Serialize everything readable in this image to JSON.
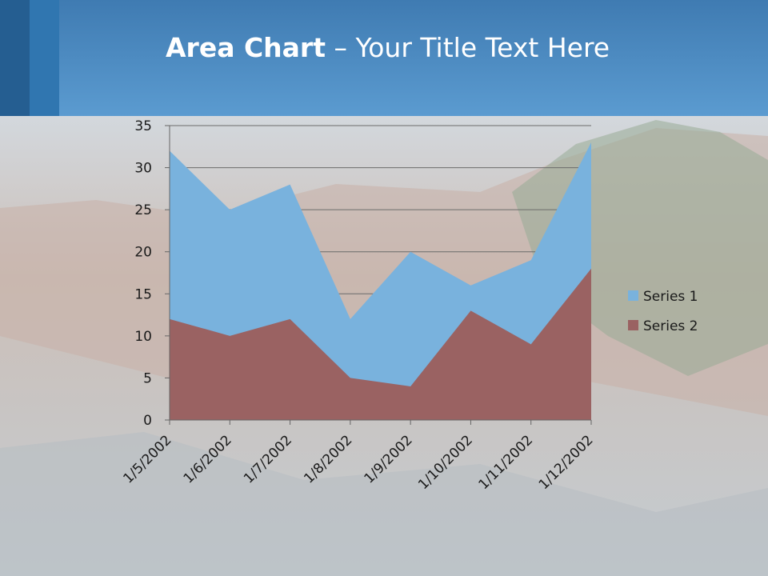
{
  "slide": {
    "title_bold": "Area Chart",
    "title_rest": " – Your Title Text Here"
  },
  "colors": {
    "header": "#4a88bd",
    "header_dark": "#2b6a9f",
    "series1": "#79b2dd",
    "series2": "#9a6262",
    "grid": "#6b6b6b"
  },
  "chart_data": {
    "type": "area",
    "stacked": true,
    "categories": [
      "1/5/2002",
      "1/6/2002",
      "1/7/2002",
      "1/8/2002",
      "1/9/2002",
      "1/10/2002",
      "1/11/2002",
      "1/12/2002"
    ],
    "series": [
      {
        "name": "Series 1",
        "values": [
          20,
          15,
          16,
          7,
          16,
          3,
          10,
          15
        ]
      },
      {
        "name": "Series 2",
        "values": [
          12,
          10,
          12,
          5,
          4,
          13,
          9,
          18
        ]
      }
    ],
    "ylim": [
      0,
      35
    ],
    "yticks": [
      0,
      5,
      10,
      15,
      20,
      25,
      30,
      35
    ],
    "grid": true,
    "legend": "right"
  }
}
